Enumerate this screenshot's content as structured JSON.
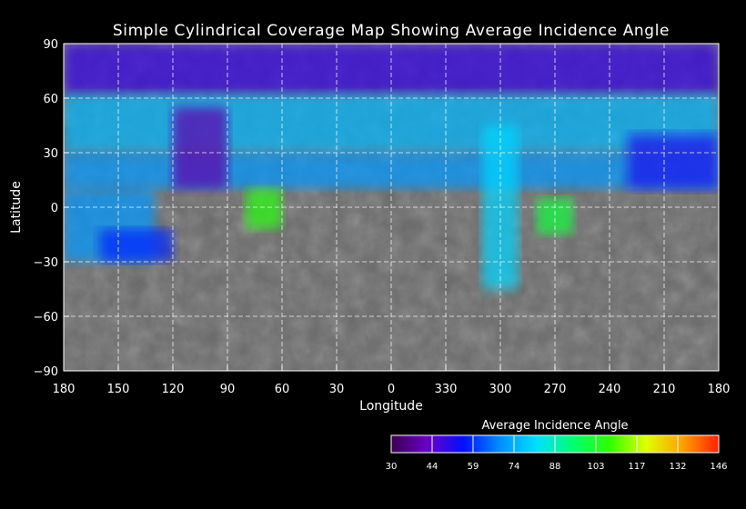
{
  "title": "Simple Cylindrical Coverage Map Showing Average Incidence Angle",
  "chart_data": {
    "type": "heatmap",
    "projection": "simple-cylindrical",
    "xlabel": "Longitude",
    "ylabel": "Latitude",
    "x_tick_labels": [
      "180",
      "150",
      "120",
      "90",
      "60",
      "30",
      "0",
      "330",
      "300",
      "270",
      "240",
      "210",
      "180"
    ],
    "y_ticks": [
      90,
      60,
      30,
      0,
      -30,
      -60,
      -90
    ],
    "y_tick_labels": [
      "90",
      "60",
      "30",
      "0",
      "−30",
      "−60",
      "−90"
    ],
    "ylim": [
      -90,
      90
    ],
    "grid": true,
    "grid_style": "dashed",
    "basemap": "grayscale surface",
    "colorbar": {
      "title": "Average Incidence Angle",
      "ticks": [
        30,
        44,
        59,
        74,
        88,
        103,
        117,
        132,
        146
      ],
      "colors": [
        "#3a0050",
        "#6a00c8",
        "#0010ff",
        "#0090ff",
        "#00e0ff",
        "#00ff70",
        "#30ff00",
        "#e0ff00",
        "#ffa000",
        "#ff2000"
      ]
    },
    "coverage_regions": [
      {
        "lon_span": [
          180,
          180
        ],
        "lat_range": [
          62,
          90
        ],
        "mean_angle": 50
      },
      {
        "lon_span": [
          180,
          180
        ],
        "lat_range": [
          30,
          62
        ],
        "mean_angle": 75
      },
      {
        "lon_span": [
          180,
          180
        ],
        "lat_range": [
          10,
          30
        ],
        "mean_angle": 70
      },
      {
        "lon_span": [
          180,
          130
        ],
        "lat_range": [
          -30,
          10
        ],
        "mean_angle": 70
      },
      {
        "lon_span": [
          160,
          120
        ],
        "lat_range": [
          -30,
          -12
        ],
        "mean_angle": 58
      },
      {
        "lon_span": [
          120,
          90
        ],
        "lat_range": [
          10,
          55
        ],
        "mean_angle": 40
      },
      {
        "lon_span": [
          80,
          60
        ],
        "lat_range": [
          -12,
          10
        ],
        "mean_angle": 105
      },
      {
        "lon_span": [
          310,
          290
        ],
        "lat_range": [
          -45,
          45
        ],
        "mean_angle": 80
      },
      {
        "lon_span": [
          280,
          260
        ],
        "lat_range": [
          -15,
          5
        ],
        "mean_angle": 100
      },
      {
        "lon_span": [
          230,
          180
        ],
        "lat_range": [
          10,
          40
        ],
        "mean_angle": 52
      }
    ]
  }
}
